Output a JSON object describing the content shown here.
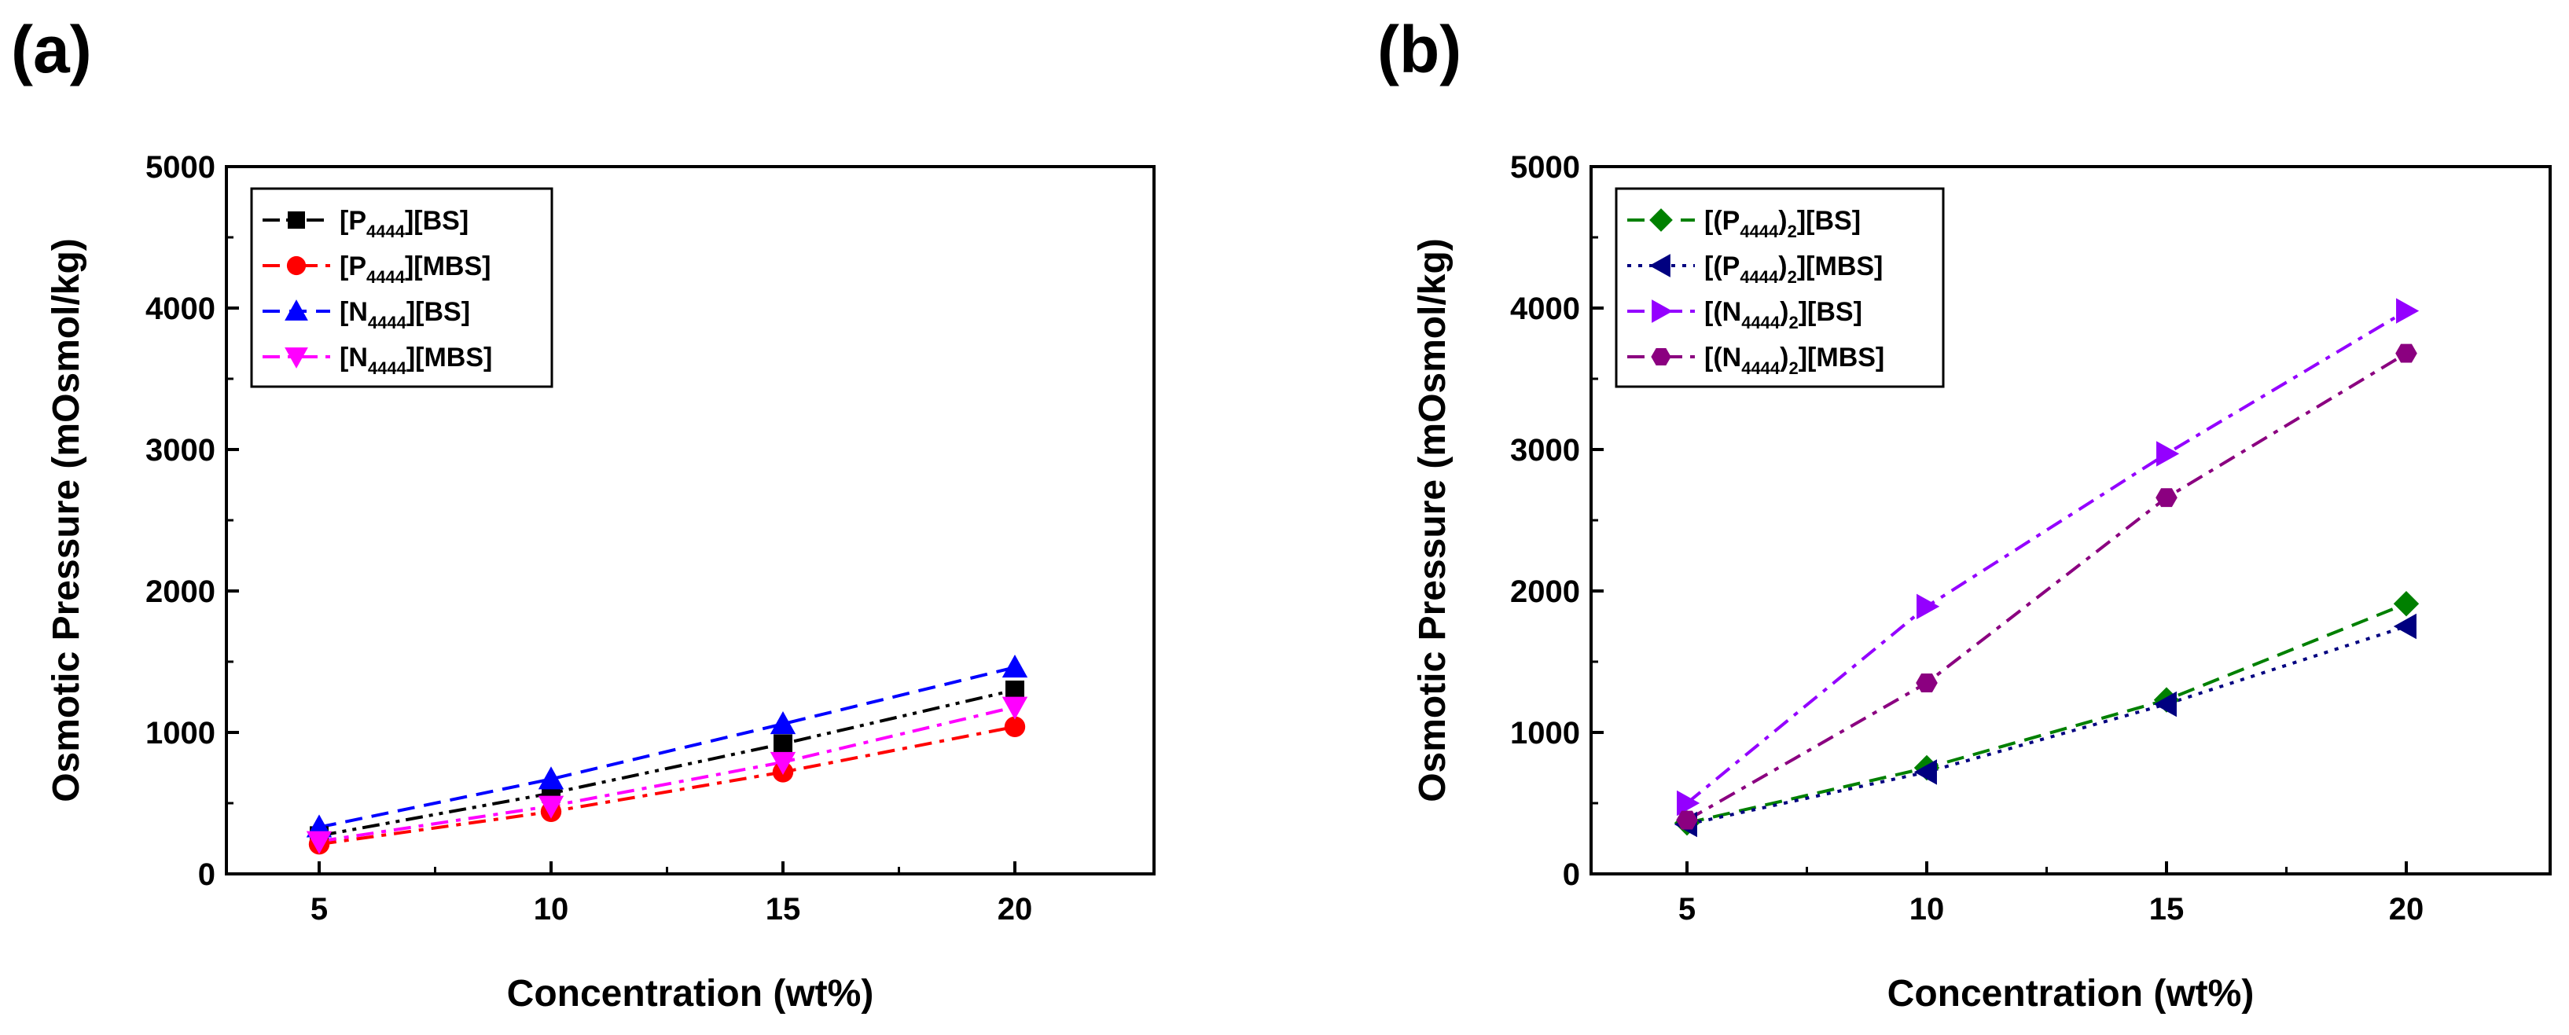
{
  "chart_data": [
    {
      "panel_label": "(a)",
      "type": "line",
      "xlabel": "Concentration (wt%)",
      "ylabel": "Osmotic Pressure (mOsmol/kg)",
      "xlim": [
        3,
        23
      ],
      "ylim": [
        0,
        5000
      ],
      "x_ticks": [
        5,
        10,
        15,
        20
      ],
      "y_ticks": [
        0,
        1000,
        2000,
        3000,
        4000,
        5000
      ],
      "x": [
        5,
        10,
        15,
        20
      ],
      "legend_position": "top-left",
      "series": [
        {
          "name": "[P4444][BS]",
          "label_parts": [
            "[P",
            "4444",
            "][BS]"
          ],
          "color": "#000000",
          "marker": "square",
          "dash": "dashdotdot",
          "values": [
            270,
            570,
            920,
            1300
          ]
        },
        {
          "name": "[P4444][MBS]",
          "label_parts": [
            "[P",
            "4444",
            "][MBS]"
          ],
          "color": "#ff0000",
          "marker": "circle",
          "dash": "dashdot",
          "values": [
            210,
            440,
            720,
            1040
          ]
        },
        {
          "name": "[N4444][BS]",
          "label_parts": [
            "[N",
            "4444",
            "][BS]"
          ],
          "color": "#0000ff",
          "marker": "triangle-up",
          "dash": "dash",
          "values": [
            330,
            670,
            1060,
            1460
          ]
        },
        {
          "name": "[N4444][MBS]",
          "label_parts": [
            "[N",
            "4444",
            "][MBS]"
          ],
          "color": "#ff00ff",
          "marker": "triangle-down",
          "dash": "dashdot",
          "values": [
            230,
            480,
            790,
            1180
          ]
        }
      ]
    },
    {
      "panel_label": "(b)",
      "type": "line",
      "xlabel": "Concentration (wt%)",
      "ylabel": "Osmotic Pressure (mOsmol/kg)",
      "xlim": [
        3,
        23
      ],
      "ylim": [
        0,
        5000
      ],
      "x_ticks": [
        5,
        10,
        15,
        20
      ],
      "y_ticks": [
        0,
        1000,
        2000,
        3000,
        4000,
        5000
      ],
      "x": [
        5,
        10,
        15,
        20
      ],
      "legend_position": "top-left",
      "series": [
        {
          "name": "[(P4444)2][BS]",
          "label_parts": [
            "[(P",
            "4444",
            ")",
            "2",
            "][BS]"
          ],
          "color": "#008000",
          "marker": "diamond",
          "dash": "dash",
          "values": [
            360,
            750,
            1230,
            1910
          ]
        },
        {
          "name": "[(P4444)2][MBS]",
          "label_parts": [
            "[(P",
            "4444",
            ")",
            "2",
            "][MBS]"
          ],
          "color": "#000080",
          "marker": "triangle-left",
          "dash": "dot",
          "values": [
            350,
            720,
            1200,
            1750
          ]
        },
        {
          "name": "[(N4444)2][BS]",
          "label_parts": [
            "[(N",
            "4444",
            ")",
            "2",
            "][BS]"
          ],
          "color": "#9400ff",
          "marker": "triangle-right",
          "dash": "dashdot",
          "values": [
            500,
            1890,
            2970,
            3980
          ]
        },
        {
          "name": "[(N4444)2][MBS]",
          "label_parts": [
            "[(N",
            "4444",
            ")",
            "2",
            "][MBS]"
          ],
          "color": "#8b0080",
          "marker": "hexagon",
          "dash": "dashdot",
          "values": [
            380,
            1350,
            2660,
            3680
          ]
        }
      ]
    }
  ]
}
